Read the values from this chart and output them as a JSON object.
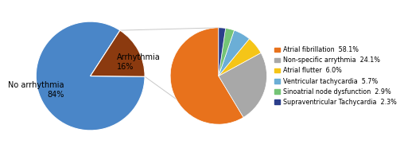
{
  "left_pie": {
    "label_no": "No arrhythmia\n84%",
    "label_arr": "Arrhythmia\n16%",
    "sizes": [
      84,
      16
    ],
    "colors": [
      "#4A86C8",
      "#8B3A0F"
    ],
    "startangle": 57
  },
  "right_pie": {
    "labels": [
      "Atrial fibrillation",
      "Non-specific arrythmia",
      "Atrial flutter",
      "Ventricular tachycardia",
      "Sinoatrial node dysfunction",
      "Supraventricular Tachycardia"
    ],
    "pcts": [
      "58.1%",
      "24.1%",
      "6.0%",
      "5.7%",
      "2.9%",
      "2.3%"
    ],
    "sizes": [
      58.1,
      24.1,
      6.0,
      5.7,
      2.9,
      2.3
    ],
    "colors": [
      "#E8721C",
      "#A8A8A8",
      "#F5C518",
      "#6BAED6",
      "#74C476",
      "#2B3E8B"
    ],
    "startangle": 90
  },
  "connector_color": "#C8C8C8",
  "background_color": "#FFFFFF"
}
